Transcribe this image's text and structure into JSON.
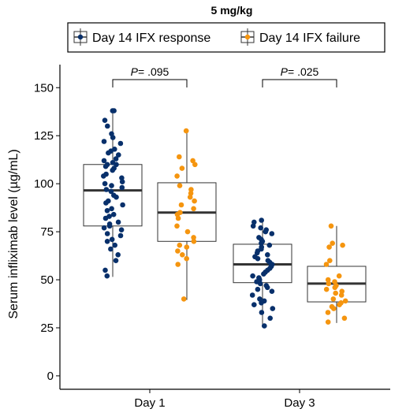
{
  "chart_data": {
    "type": "boxplot",
    "title": "5 mg/kg",
    "ylabel": "Serum infliximab level (µg/mL)",
    "xlabel": "",
    "ylim": [
      -7,
      162
    ],
    "yticks": [
      0,
      25,
      50,
      75,
      100,
      125,
      150
    ],
    "categories": [
      "Day 1",
      "Day 3"
    ],
    "legend_position": "top",
    "grid": false,
    "series": [
      {
        "name": "Day 14 IFX response",
        "color": "#08306b",
        "boxes": [
          {
            "category": "Day 1",
            "min": 51.5,
            "q1": 78,
            "median": 96.5,
            "q3": 110,
            "max": 138,
            "points": [
              138,
              138,
              133,
              130,
              126,
              124,
              122,
              121,
              118,
              117,
              116,
              115,
              113,
              112,
              111,
              110,
              110,
              109,
              108,
              107,
              105,
              104,
              103,
              101,
              100,
              99,
              98,
              97,
              96,
              94,
              93,
              91,
              90,
              89,
              87,
              86,
              84,
              83,
              82,
              80,
              79,
              78,
              77,
              76,
              74,
              73,
              71,
              70,
              68,
              66,
              63,
              60,
              55,
              52
            ]
          },
          {
            "category": "Day 3",
            "min": 26,
            "q1": 48.5,
            "median": 58,
            "q3": 68.5,
            "max": 81,
            "points": [
              81,
              80,
              78,
              77,
              76,
              75,
              74,
              72,
              71,
              70,
              69,
              68,
              67,
              66,
              65,
              64,
              63,
              62,
              61,
              60,
              59,
              58,
              57,
              56,
              55,
              54,
              53,
              52,
              51,
              50,
              49,
              48,
              47,
              46,
              45,
              44,
              42,
              40,
              39,
              38,
              37,
              35,
              33,
              30,
              26
            ]
          }
        ]
      },
      {
        "name": "Day 14 IFX failure",
        "color": "#f5950f",
        "boxes": [
          {
            "category": "Day 1",
            "min": 39.5,
            "q1": 70,
            "median": 85,
            "q3": 100.5,
            "max": 127.5,
            "points": [
              127.5,
              114,
              112,
              110,
              108,
              104,
              99,
              97,
              95,
              93,
              91,
              89,
              87,
              85,
              84,
              82,
              78,
              75,
              72,
              70,
              68,
              67,
              65,
              63,
              61,
              58,
              40
            ]
          },
          {
            "category": "Day 3",
            "min": 27.5,
            "q1": 38.5,
            "median": 48,
            "q3": 57,
            "max": 78,
            "points": [
              78,
              69,
              68,
              67,
              60,
              58,
              52,
              50,
              49,
              48,
              47,
              46,
              45,
              44,
              43,
              42,
              40,
              39,
              38,
              37,
              36,
              35,
              33,
              30,
              28
            ]
          }
        ]
      }
    ],
    "annotations": [
      {
        "category": "Day 1",
        "p_label": "P",
        "p_text": "= .095"
      },
      {
        "category": "Day 3",
        "p_label": "P",
        "p_text": "= .025"
      }
    ]
  }
}
